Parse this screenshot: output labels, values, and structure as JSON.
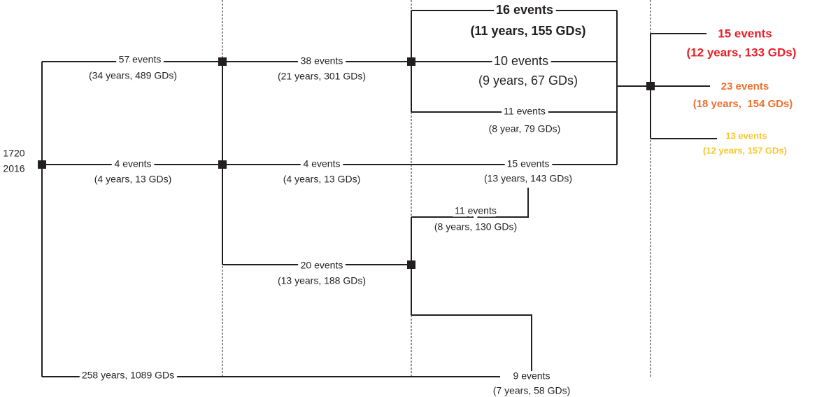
{
  "root": {
    "start": "1720",
    "end": "2016"
  },
  "branches": [
    {
      "events": "57 events",
      "detail": "(34 years, 489 GDs)"
    },
    {
      "events": "4 events",
      "detail": "(4 years, 13 GDs)"
    },
    {
      "detail": "258 years, 1089 GDs"
    },
    {
      "events": "38 events",
      "detail": "(21 years, 301 GDs)"
    },
    {
      "events": "4 events",
      "detail": "(4 years, 13 GDs)"
    },
    {
      "events": "20 events",
      "detail": "(13 years, 188 GDs)"
    },
    {
      "events": "16 events",
      "detail": "(11 years, 155 GDs)"
    },
    {
      "events": "10 events",
      "detail": "(9 years, 67 GDs)"
    },
    {
      "events": "11 events",
      "detail": "(8 year, 79 GDs)"
    },
    {
      "events": "15 events",
      "detail": "(13 years, 143 GDs)"
    },
    {
      "events": "11 events",
      "detail": "(8 years, 130 GDs)"
    },
    {
      "events": "9 events",
      "detail": "(7 years, 58 GDs)"
    },
    {
      "events": "15 events",
      "detail": "(12 years, 133 GDs)"
    },
    {
      "events": "23 events",
      "detail": "(18 years,  154 GDs)"
    },
    {
      "events": "13 events",
      "detail": "(12 years, 157 GDs)"
    }
  ]
}
